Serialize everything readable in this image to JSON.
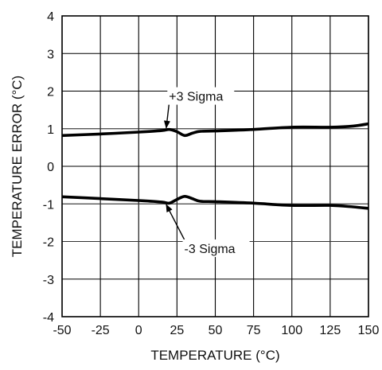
{
  "chart_data": {
    "type": "line",
    "title": "",
    "xlabel": "TEMPERATURE (°C)",
    "ylabel": "TEMPERATURE ERROR (°C)",
    "xlim": [
      -50,
      150
    ],
    "ylim": [
      -4,
      4
    ],
    "x_ticks": [
      -50,
      -25,
      0,
      25,
      50,
      75,
      100,
      125,
      150
    ],
    "x_tick_labels": [
      "-50",
      "-25",
      "0",
      "25",
      "50",
      "75",
      "100",
      "125",
      "150"
    ],
    "y_ticks": [
      -4,
      -3,
      -2,
      -1,
      0,
      1,
      2,
      3,
      4
    ],
    "y_tick_labels": [
      "-4",
      "-3",
      "-2",
      "-1",
      "0",
      "1",
      "2",
      "3",
      "4"
    ],
    "grid": true,
    "reference_lines": [
      1,
      -1,
      -2
    ],
    "series": [
      {
        "name": "+3 Sigma",
        "x": [
          -50,
          -25,
          0,
          15,
          20,
          25,
          30,
          35,
          40,
          50,
          75,
          100,
          125,
          140,
          150
        ],
        "y": [
          0.82,
          0.86,
          0.91,
          0.95,
          0.98,
          0.92,
          0.82,
          0.88,
          0.93,
          0.94,
          0.98,
          1.04,
          1.04,
          1.07,
          1.13
        ]
      },
      {
        "name": "-3 Sigma",
        "x": [
          -50,
          -25,
          0,
          15,
          20,
          25,
          30,
          35,
          40,
          50,
          75,
          100,
          125,
          140,
          150
        ],
        "y": [
          -0.81,
          -0.86,
          -0.91,
          -0.95,
          -0.98,
          -0.88,
          -0.8,
          -0.86,
          -0.93,
          -0.94,
          -0.98,
          -1.04,
          -1.04,
          -1.08,
          -1.12
        ]
      }
    ],
    "annotations": [
      {
        "text": "+3 Sigma",
        "x": 26,
        "y": 1.85,
        "arrow_to": [
          18,
          1.02
        ]
      },
      {
        "text": "-3 Sigma",
        "x": 36,
        "y": -2.2,
        "arrow_to": [
          18,
          -1.02
        ]
      }
    ]
  }
}
